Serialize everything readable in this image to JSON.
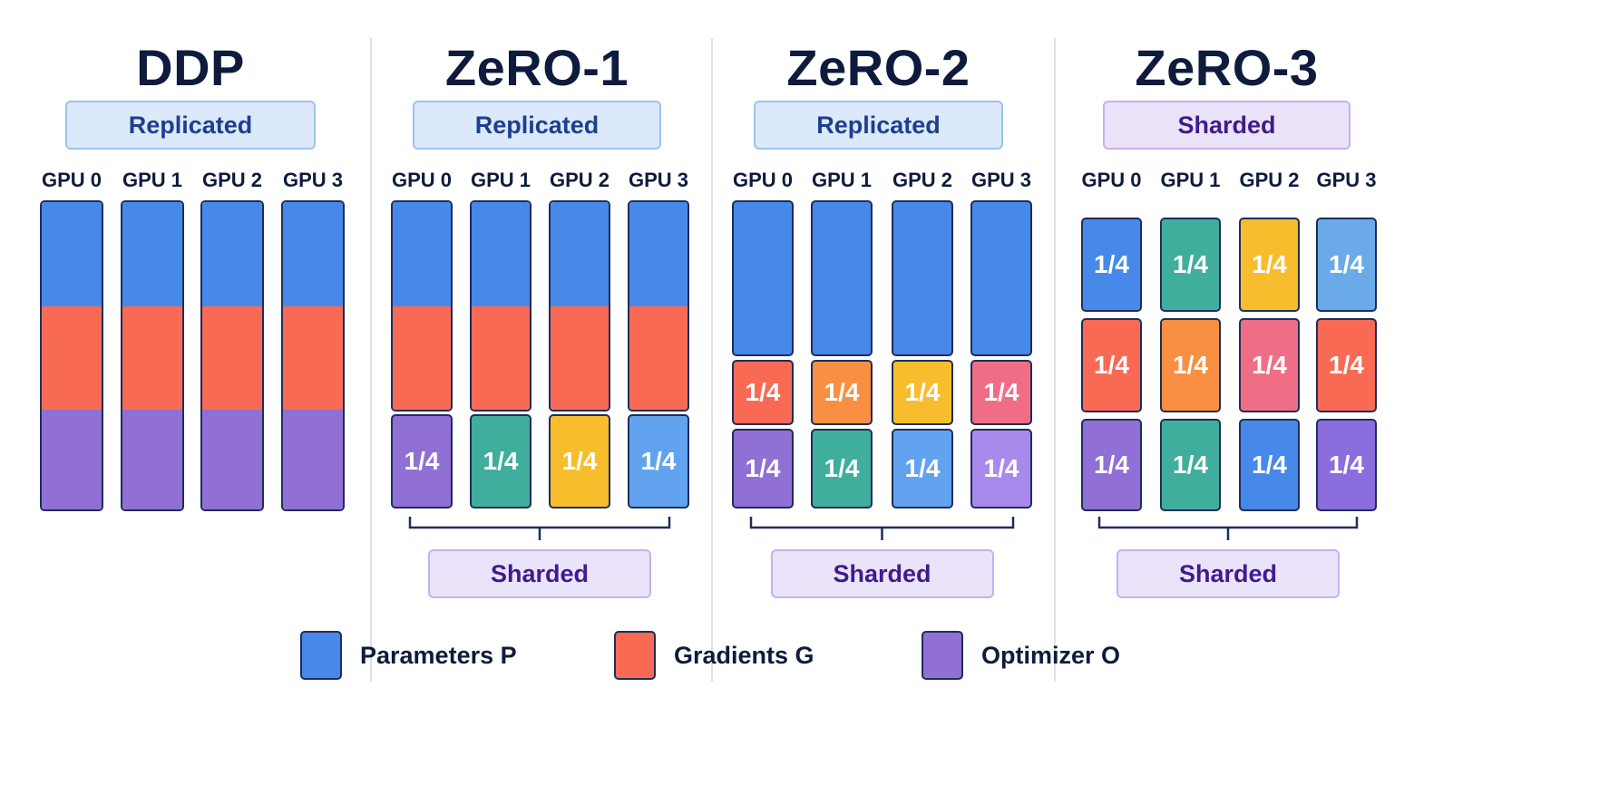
{
  "colors": {
    "parameters": "#4689e8",
    "gradients": "#f96a55",
    "optimizer": "#9070d4",
    "teal": "#40ae9c",
    "yellow": "#f7bd2c",
    "light_blue": "#62a3ef",
    "orange": "#f98f42",
    "pink": "#ef6e85",
    "lavender": "#a889ec",
    "sky": "#6aaae9",
    "violet": "#8a6ede",
    "blue": "#4689e8"
  },
  "gpu_labels": [
    "GPU 0",
    "GPU 1",
    "GPU 2",
    "GPU 3"
  ],
  "shard_label": "1/4",
  "panels": [
    {
      "title": "DDP",
      "top_pill": "Replicated",
      "top_pill_type": "replicated",
      "bottom_pill": "",
      "parameters": "full",
      "gradients": "full",
      "optimizer": "full"
    },
    {
      "title": "ZeRO-1",
      "top_pill": "Replicated",
      "top_pill_type": "replicated",
      "bottom_pill": "Sharded",
      "parameters": "full",
      "gradients": "full",
      "optimizer": "sharded",
      "optimizer_colors": [
        "optimizer",
        "teal",
        "yellow",
        "light_blue"
      ]
    },
    {
      "title": "ZeRO-2",
      "top_pill": "Replicated",
      "top_pill_type": "replicated",
      "bottom_pill": "Sharded",
      "parameters": "full",
      "gradients": "sharded",
      "optimizer": "sharded",
      "gradient_colors": [
        "gradients",
        "orange",
        "yellow",
        "pink"
      ],
      "optimizer_colors": [
        "optimizer",
        "teal",
        "light_blue",
        "lavender"
      ]
    },
    {
      "title": "ZeRO-3",
      "top_pill": "Sharded",
      "top_pill_type": "sharded",
      "bottom_pill": "Sharded",
      "parameters": "sharded",
      "gradients": "sharded",
      "optimizer": "sharded",
      "parameter_colors": [
        "blue",
        "teal",
        "yellow",
        "sky"
      ],
      "gradient_colors": [
        "gradients",
        "orange",
        "pink",
        "gradients"
      ],
      "optimizer_colors": [
        "optimizer",
        "teal",
        "blue",
        "violet"
      ]
    }
  ],
  "legend": [
    {
      "label": "Parameters P",
      "color": "parameters"
    },
    {
      "label": "Gradients G",
      "color": "gradients"
    },
    {
      "label": "Optimizer O",
      "color": "optimizer"
    }
  ]
}
